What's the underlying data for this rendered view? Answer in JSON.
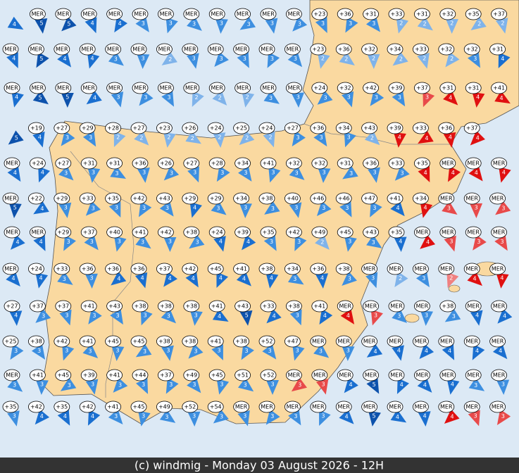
{
  "footer": "(c) windmig - Monday 03 August 2026 - 12H",
  "rows": [
    [
      [
        null,
        4
      ],
      [
        "MER",
        5
      ],
      [
        "MER",
        5
      ],
      [
        "MER",
        4
      ],
      [
        "MER",
        4
      ],
      [
        "MER",
        3
      ],
      [
        "MER",
        3
      ],
      [
        "MER",
        3
      ],
      [
        "MER",
        3
      ],
      [
        "MER",
        3
      ],
      [
        "MER",
        3
      ],
      [
        "MER",
        3
      ],
      [
        "+23",
        3
      ],
      [
        "+36",
        3
      ],
      [
        "+31",
        3
      ],
      [
        "+33",
        2
      ],
      [
        "+31",
        2
      ],
      [
        "+32",
        2
      ],
      [
        "+35",
        2
      ],
      [
        "+37",
        2
      ]
    ],
    [
      [
        "MER",
        4
      ],
      [
        "MER",
        5
      ],
      [
        "MER",
        4
      ],
      [
        "MER",
        4
      ],
      [
        "MER",
        3
      ],
      [
        "MER",
        3
      ],
      [
        "MER",
        2
      ],
      [
        "MER",
        3
      ],
      [
        "MER",
        3
      ],
      [
        "MER",
        3
      ],
      [
        "MER",
        3
      ],
      [
        "MER",
        3
      ],
      [
        "+23",
        2
      ],
      [
        "+36",
        2
      ],
      [
        "+32",
        2
      ],
      [
        "+34",
        2
      ],
      [
        "+33",
        2
      ],
      [
        "+32",
        2
      ],
      [
        "+32",
        3
      ],
      [
        "+31",
        4
      ]
    ],
    [
      [
        "MER",
        4
      ],
      [
        "MER",
        5
      ],
      [
        "MER",
        5
      ],
      [
        "MER",
        4
      ],
      [
        "MER",
        3
      ],
      [
        "MER",
        3
      ],
      [
        "MER",
        3
      ],
      [
        "MER",
        2
      ],
      [
        "MER",
        2
      ],
      [
        "MER",
        2
      ],
      [
        "MER",
        3
      ],
      [
        "MER",
        3
      ],
      [
        "+24",
        3
      ],
      [
        "+32",
        3
      ],
      [
        "+42",
        3
      ],
      [
        "+39",
        3
      ],
      [
        "+37",
        3
      ],
      [
        "+31",
        4
      ],
      [
        "+31",
        4
      ],
      [
        "+41",
        4
      ]
    ],
    [
      [
        null,
        5
      ],
      [
        "+19",
        4
      ],
      [
        "+27",
        3
      ],
      [
        "+29",
        3
      ],
      [
        "+28",
        2
      ],
      [
        "+27",
        2
      ],
      [
        "+23",
        2
      ],
      [
        "+26",
        2
      ],
      [
        "+24",
        2
      ],
      [
        "+25",
        2
      ],
      [
        "+24",
        2
      ],
      [
        "+27",
        3
      ],
      [
        "+36",
        3
      ],
      [
        "+34",
        3
      ],
      [
        "+43",
        2
      ],
      [
        "+39",
        4
      ],
      [
        "+33",
        4
      ],
      [
        "+36",
        4
      ],
      [
        "+37",
        4
      ],
      [
        null,
        null
      ]
    ],
    [
      [
        "MER",
        4
      ],
      [
        "+24",
        4
      ],
      [
        "+27",
        3
      ],
      [
        "+31",
        3
      ],
      [
        "+31",
        3
      ],
      [
        "+36",
        3
      ],
      [
        "+26",
        3
      ],
      [
        "+27",
        3
      ],
      [
        "+28",
        3
      ],
      [
        "+34",
        3
      ],
      [
        "+41",
        3
      ],
      [
        "+32",
        3
      ],
      [
        "+32",
        3
      ],
      [
        "+31",
        3
      ],
      [
        "+36",
        3
      ],
      [
        "+33",
        3
      ],
      [
        "+35",
        4
      ],
      [
        "MER",
        4
      ],
      [
        "MER",
        4
      ],
      [
        "MER",
        4
      ]
    ],
    [
      [
        "MER",
        5
      ],
      [
        "+22",
        4
      ],
      [
        "+29",
        3
      ],
      [
        "+33",
        3
      ],
      [
        "+35",
        3
      ],
      [
        "+42",
        3
      ],
      [
        "+43",
        3
      ],
      [
        "+29",
        4
      ],
      [
        "+29",
        3
      ],
      [
        "+34",
        3
      ],
      [
        "+38",
        3
      ],
      [
        "+40",
        3
      ],
      [
        "+46",
        3
      ],
      [
        "+46",
        3
      ],
      [
        "+47",
        3
      ],
      [
        "+41",
        4
      ],
      [
        "+34",
        4
      ],
      [
        "MER",
        3
      ],
      [
        "MER",
        3
      ],
      [
        "MER",
        3
      ]
    ],
    [
      [
        "MER",
        4
      ],
      [
        "MER",
        4
      ],
      [
        "+29",
        3
      ],
      [
        "+37",
        3
      ],
      [
        "+40",
        3
      ],
      [
        "+41",
        3
      ],
      [
        "+42",
        3
      ],
      [
        "+38",
        3
      ],
      [
        "+24",
        4
      ],
      [
        "+39",
        4
      ],
      [
        "+35",
        3
      ],
      [
        "+42",
        3
      ],
      [
        "+49",
        2
      ],
      [
        "+45",
        3
      ],
      [
        "+43",
        3
      ],
      [
        "+35",
        4
      ],
      [
        "MER",
        4
      ],
      [
        "MER",
        3
      ],
      [
        "MER",
        3
      ],
      [
        "MER",
        3
      ]
    ],
    [
      [
        "MER",
        4
      ],
      [
        "+24",
        4
      ],
      [
        "+33",
        3
      ],
      [
        "+36",
        3
      ],
      [
        "+36",
        4
      ],
      [
        "+36",
        4
      ],
      [
        "+37",
        4
      ],
      [
        "+42",
        4
      ],
      [
        "+45",
        4
      ],
      [
        "+41",
        4
      ],
      [
        "+38",
        4
      ],
      [
        "+34",
        3
      ],
      [
        "+36",
        4
      ],
      [
        "+38",
        3
      ],
      [
        "MER",
        3
      ],
      [
        "MER",
        2
      ],
      [
        "MER",
        3
      ],
      [
        "MER",
        2
      ],
      [
        "MER",
        4
      ],
      [
        "MER",
        4
      ]
    ],
    [
      [
        "+27",
        4
      ],
      [
        "+37",
        3
      ],
      [
        "+37",
        3
      ],
      [
        "+41",
        3
      ],
      [
        "+43",
        3
      ],
      [
        "+38",
        3
      ],
      [
        "+38",
        3
      ],
      [
        "+38",
        3
      ],
      [
        "+41",
        4
      ],
      [
        "+43",
        5
      ],
      [
        "+33",
        4
      ],
      [
        "+38",
        3
      ],
      [
        "+41",
        4
      ],
      [
        "MER",
        4
      ],
      [
        "MER",
        3
      ],
      [
        "MER",
        3
      ],
      [
        "MER",
        3
      ],
      [
        "+38",
        3
      ],
      [
        "MER",
        4
      ],
      [
        "MER",
        4
      ]
    ],
    [
      [
        "+25",
        3
      ],
      [
        "+38",
        3
      ],
      [
        "+42",
        3
      ],
      [
        "+41",
        3
      ],
      [
        "+45",
        3
      ],
      [
        "+45",
        3
      ],
      [
        "+38",
        3
      ],
      [
        "+38",
        3
      ],
      [
        "+41",
        3
      ],
      [
        "+38",
        3
      ],
      [
        "+52",
        3
      ],
      [
        "+47",
        3
      ],
      [
        "MER",
        3
      ],
      [
        "MER",
        3
      ],
      [
        "MER",
        4
      ],
      [
        "MER",
        4
      ],
      [
        "MER",
        4
      ],
      [
        "MER",
        4
      ],
      [
        "MER",
        4
      ],
      [
        "MER",
        4
      ]
    ],
    [
      [
        "MER",
        3
      ],
      [
        "+41",
        3
      ],
      [
        "+45",
        3
      ],
      [
        "+39",
        3
      ],
      [
        "+41",
        3
      ],
      [
        "+44",
        3
      ],
      [
        "+37",
        3
      ],
      [
        "+49",
        3
      ],
      [
        "+45",
        3
      ],
      [
        "+51",
        3
      ],
      [
        "+52",
        3
      ],
      [
        "MER",
        3
      ],
      [
        "MER",
        3
      ],
      [
        "MER",
        4
      ],
      [
        "MER",
        5
      ],
      [
        "MER",
        4
      ],
      [
        "MER",
        4
      ],
      [
        "MER",
        4
      ],
      [
        "MER",
        3
      ],
      [
        "MER",
        3
      ]
    ],
    [
      [
        "+35",
        3
      ],
      [
        "+42",
        4
      ],
      [
        "+35",
        4
      ],
      [
        "+42",
        4
      ],
      [
        "+41",
        3
      ],
      [
        "+45",
        3
      ],
      [
        "+49",
        3
      ],
      [
        "+52",
        3
      ],
      [
        "+54",
        3
      ],
      [
        "MER",
        3
      ],
      [
        "MER",
        3
      ],
      [
        "MER",
        3
      ],
      [
        "MER",
        3
      ],
      [
        "MER",
        4
      ],
      [
        "MER",
        5
      ],
      [
        "MER",
        4
      ],
      [
        "MER",
        4
      ],
      [
        "MER",
        4
      ],
      [
        "MER",
        3
      ],
      [
        "MER",
        3
      ]
    ]
  ]
}
